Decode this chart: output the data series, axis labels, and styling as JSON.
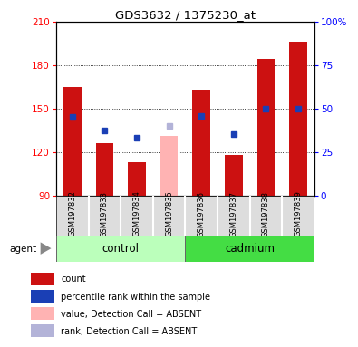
{
  "title": "GDS3632 / 1375230_at",
  "samples": [
    "GSM197832",
    "GSM197833",
    "GSM197834",
    "GSM197835",
    "GSM197836",
    "GSM197837",
    "GSM197838",
    "GSM197839"
  ],
  "bar_values": [
    165,
    126,
    113,
    null,
    163,
    118,
    184,
    196
  ],
  "bar_absent": [
    null,
    null,
    null,
    131,
    null,
    null,
    null,
    null
  ],
  "rank_values": [
    144,
    135,
    130,
    null,
    145,
    132,
    150,
    150
  ],
  "rank_absent": [
    null,
    null,
    null,
    138,
    null,
    null,
    null,
    null
  ],
  "ylim_left": [
    90,
    210
  ],
  "yticks_left": [
    90,
    120,
    150,
    180,
    210
  ],
  "yticks_right": [
    0,
    25,
    50,
    75,
    100
  ],
  "bar_color": "#cc1111",
  "rank_color": "#1a3fb5",
  "bar_absent_color": "#ffb3b3",
  "rank_absent_color": "#b3b3d8",
  "ctrl_color": "#bbffbb",
  "cad_color": "#44dd44",
  "bar_width": 0.55,
  "background_color": "#ffffff"
}
